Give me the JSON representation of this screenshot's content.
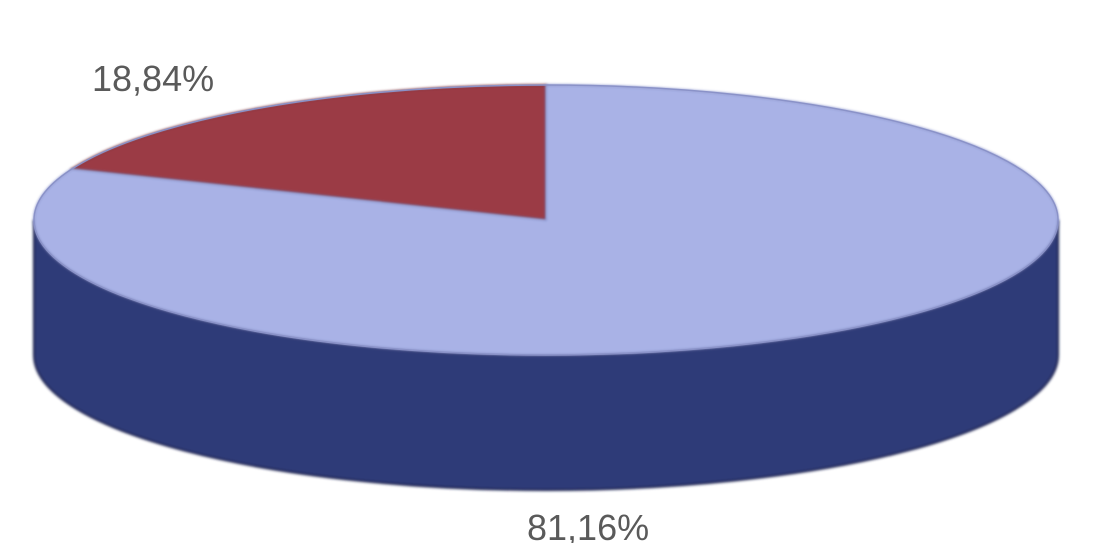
{
  "chart_data": {
    "type": "pie",
    "style": "3d",
    "title": "",
    "slices": [
      {
        "value": 18.84,
        "label": "18,84%",
        "color": "#9b3a45"
      },
      {
        "value": 81.16,
        "label": "81,16%",
        "color": "#a9b2e6",
        "side_color": "#2f3a78"
      }
    ]
  }
}
